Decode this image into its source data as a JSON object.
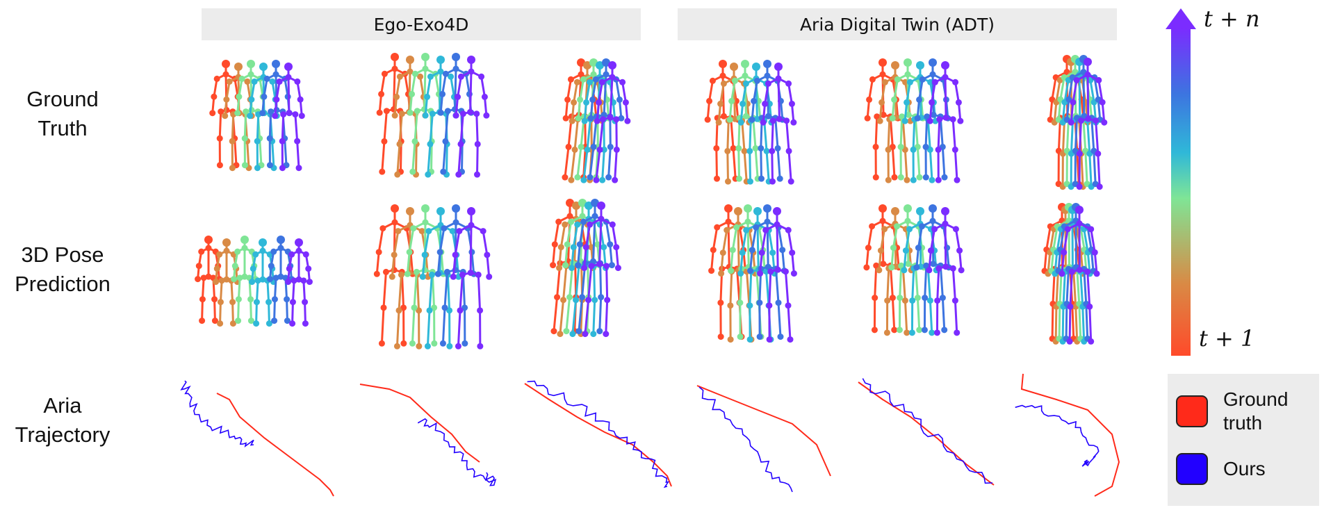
{
  "headers": {
    "left": "Ego-Exo4D",
    "right": "Aria Digital Twin (ADT)"
  },
  "rows": [
    {
      "line1": "Ground",
      "line2": "Truth"
    },
    {
      "line1": "3D Pose",
      "line2": "Prediction"
    },
    {
      "line1": "Aria",
      "line2": "Trajectory"
    }
  ],
  "colorbar": {
    "top_label": "t + n",
    "bottom_label": "t + 1",
    "colors": [
      "#ff4a2a",
      "#d98a45",
      "#7fe596",
      "#2fb8d8",
      "#3d74e0",
      "#7b2cff"
    ]
  },
  "legend": {
    "items": [
      {
        "line1": "Ground",
        "line2": "truth",
        "color": "#ff2a1a"
      },
      {
        "line1": "Ours",
        "line2": "",
        "color": "#2200ff"
      }
    ]
  },
  "trajectory_colors": {
    "ground_truth": "#ff2a1a",
    "ours": "#2200ff"
  }
}
